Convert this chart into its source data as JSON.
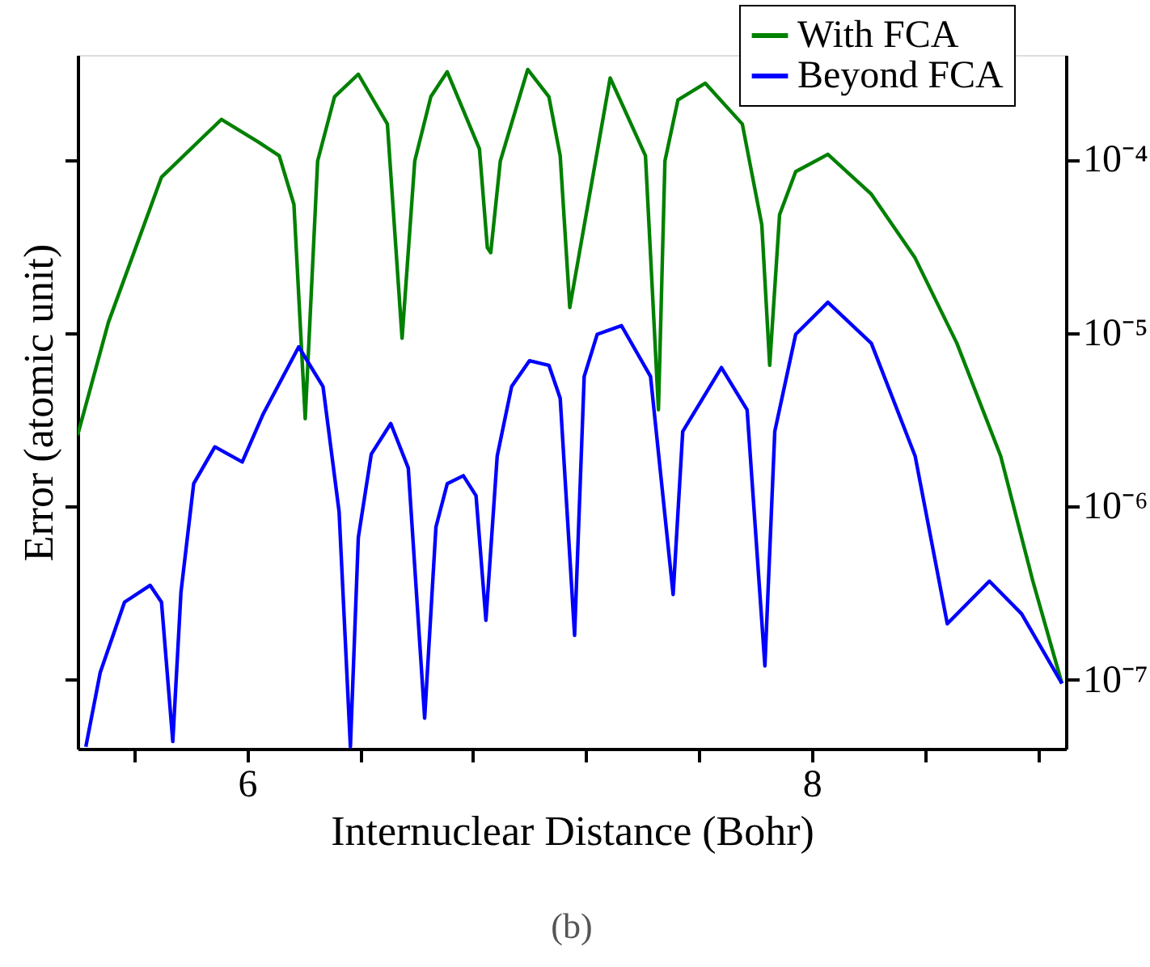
{
  "chart_data": {
    "type": "line",
    "xlabel": "Internuclear Distance (Bohr)",
    "ylabel": "Error (atomic unit)",
    "log": true,
    "grid": false,
    "legend": "top right",
    "marker": "none",
    "line_style": "solid",
    "xlim": [
      5.4,
      8.9
    ],
    "ylim": [
      4e-08,
      0.0004
    ],
    "xticks": [
      {
        "value": 5.6,
        "label": null
      },
      6,
      {
        "value": 6.4,
        "label": null
      },
      {
        "value": 6.8,
        "label": null
      },
      {
        "value": 7.2,
        "label": null
      },
      {
        "value": 7.6,
        "label": null
      },
      8,
      {
        "value": 8.4,
        "label": null
      },
      {
        "value": 8.8,
        "label": null
      }
    ],
    "yticks": [
      {
        "value": 1e-07,
        "label": "10⁻⁷"
      },
      {
        "value": 1e-06,
        "label": "10⁻⁶"
      },
      {
        "value": 1e-05,
        "label": "10⁻⁵"
      },
      {
        "value": 0.0001,
        "label": "10⁻⁴"
      }
    ],
    "annotations": [
      "(b)"
    ],
    "series": [
      {
        "name": "With FCA",
        "color": "#008000",
        "x": [
          5.4,
          5.509,
          5.697,
          5.909,
          6.04,
          6.114,
          6.166,
          6.206,
          6.25,
          6.31,
          6.394,
          6.497,
          6.549,
          6.594,
          6.651,
          6.709,
          6.823,
          6.851,
          6.863,
          6.897,
          6.994,
          7.069,
          7.109,
          7.143,
          7.286,
          7.411,
          7.457,
          7.48,
          7.526,
          7.623,
          7.754,
          7.823,
          7.851,
          7.886,
          7.943,
          8.057,
          8.211,
          8.366,
          8.514,
          8.669,
          8.783,
          8.886
        ],
        "values": [
          2.57e-06,
          1.15e-05,
          7.9e-05,
          0.00017,
          0.000126,
          0.000105,
          5.5e-05,
          3.2e-06,
          9.8e-05,
          0.00023,
          0.00031,
          0.00016,
          9.3e-06,
          9.8e-05,
          0.00023,
          0.00032,
          0.000115,
          3.1e-05,
          2.9e-05,
          9.8e-05,
          0.00033,
          0.00023,
          0.000105,
          1.4e-05,
          0.000295,
          0.000105,
          3.6e-06,
          9.8e-05,
          0.00022,
          0.000275,
          0.00016,
          4.2e-05,
          6.5e-06,
          4.8e-05,
          8.5e-05,
          0.000107,
          6.3e-05,
          2.7e-05,
          8.7e-06,
          1.95e-06,
          3.7e-07,
          9.5e-08
        ]
      },
      {
        "name": "Beyond FCA",
        "color": "#0000ff",
        "x": [
          5.429,
          5.48,
          5.566,
          5.657,
          5.697,
          5.737,
          5.766,
          5.811,
          5.886,
          5.983,
          6.057,
          6.183,
          6.269,
          6.326,
          6.366,
          6.394,
          6.44,
          6.509,
          6.571,
          6.629,
          6.669,
          6.709,
          6.766,
          6.811,
          6.846,
          6.886,
          6.937,
          7.0,
          7.069,
          7.109,
          7.16,
          7.194,
          7.24,
          7.326,
          7.429,
          7.509,
          7.543,
          7.68,
          7.771,
          7.834,
          7.869,
          7.943,
          8.057,
          8.211,
          8.366,
          8.48,
          8.629,
          8.743,
          8.886
        ],
        "values": [
          4.1e-08,
          1.1e-07,
          2.8e-07,
          3.5e-07,
          2.8e-07,
          4.4e-08,
          3.2e-07,
          1.35e-06,
          2.2e-06,
          1.8e-06,
          3.4e-06,
          8.3e-06,
          4.9e-06,
          9.3e-07,
          4.1e-08,
          6.6e-07,
          2e-06,
          3e-06,
          1.66e-06,
          6e-08,
          7.6e-07,
          1.35e-06,
          1.5e-06,
          1.15e-06,
          2.2e-07,
          1.95e-06,
          4.9e-06,
          6.9e-06,
          6.5e-06,
          4.2e-06,
          1.8e-07,
          5.6e-06,
          9.8e-06,
          1.1e-05,
          5.6e-06,
          3.1e-07,
          2.7e-06,
          6.3e-06,
          3.6e-06,
          1.2e-07,
          2.7e-06,
          9.8e-06,
          1.5e-05,
          8.7e-06,
          1.95e-06,
          2.1e-07,
          3.7e-07,
          2.4e-07,
          9.5e-08
        ]
      }
    ]
  }
}
